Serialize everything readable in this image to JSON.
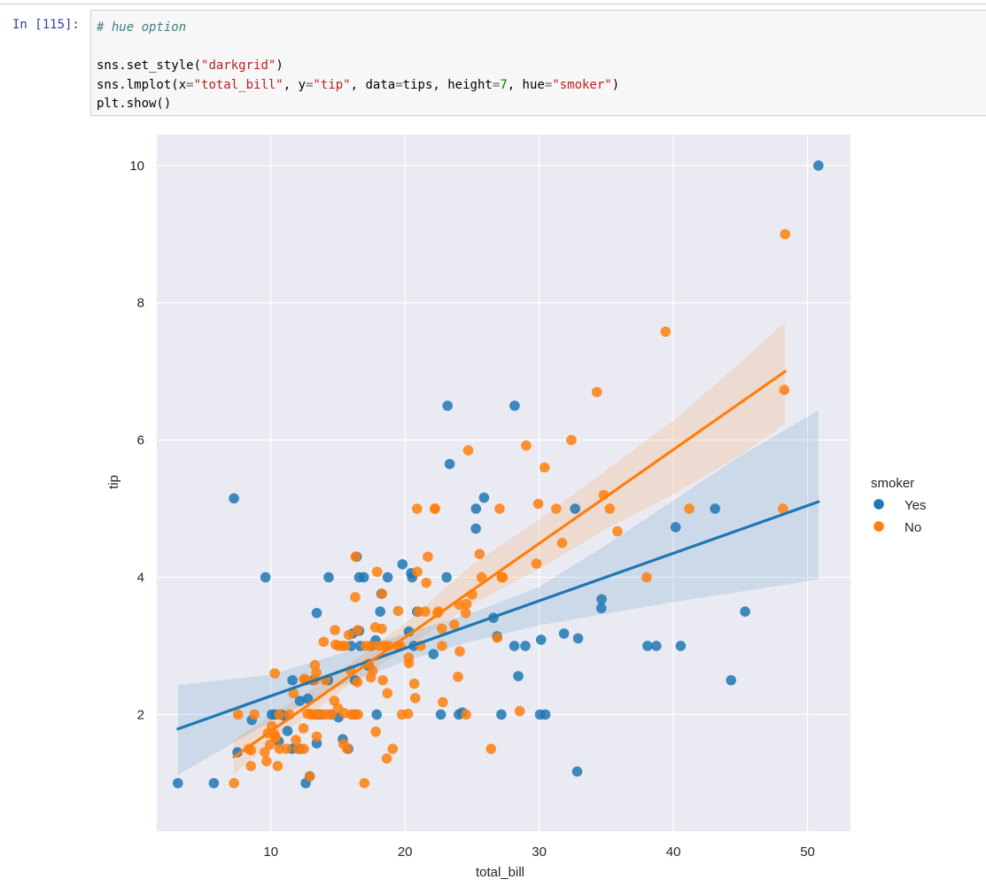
{
  "cell": {
    "prompt": "In [115]:",
    "code": {
      "comment": "# hue option",
      "line2": {
        "prefix": "sns.set_style(",
        "arg": "\"darkgrid\"",
        "suffix": ")"
      },
      "line3": {
        "p1": "sns.lmplot(x",
        "eq1": "=",
        "v1": "\"total_bill\"",
        "p2": ", y",
        "eq2": "=",
        "v2": "\"tip\"",
        "p3": ", data",
        "eq3": "=",
        "p3b": "tips, height",
        "eq4": "=",
        "v4": "7",
        "p5": ", hue",
        "eq5": "=",
        "v5": "\"smoker\"",
        "close": ")"
      },
      "line4": "plt.show()"
    }
  },
  "colors": {
    "yes": "#1f77b4",
    "no": "#ff7f0e",
    "panel": "#eaeaf2",
    "grid": "#ffffff"
  },
  "chart_data": {
    "type": "scatter",
    "xlabel": "total_bill",
    "ylabel": "tip",
    "xticks": [
      10,
      20,
      30,
      40,
      50
    ],
    "yticks": [
      2,
      4,
      6,
      8,
      10
    ],
    "xlim": [
      1.5,
      53.2
    ],
    "ylim": [
      0.3,
      10.45
    ],
    "grid": true,
    "legend": {
      "title": "smoker",
      "placement": "center-right",
      "entries": [
        "Yes",
        "No"
      ]
    },
    "series": [
      {
        "name": "Yes",
        "color": "#1f77b4",
        "points": [
          [
            3.07,
            1.0
          ],
          [
            5.75,
            1.0
          ],
          [
            7.25,
            5.15
          ],
          [
            7.51,
            1.45
          ],
          [
            8.58,
            1.92
          ],
          [
            9.6,
            4.0
          ],
          [
            10.07,
            2.0
          ],
          [
            10.34,
            2.0
          ],
          [
            10.59,
            1.61
          ],
          [
            10.77,
            2.0
          ],
          [
            11.02,
            1.98
          ],
          [
            11.24,
            1.76
          ],
          [
            11.59,
            1.5
          ],
          [
            11.61,
            2.5
          ],
          [
            12.16,
            2.2
          ],
          [
            12.17,
            1.5
          ],
          [
            12.6,
            1.0
          ],
          [
            12.76,
            2.23
          ],
          [
            12.9,
            1.1
          ],
          [
            13.16,
            2.5
          ],
          [
            13.42,
            3.48
          ],
          [
            13.42,
            1.58
          ],
          [
            13.51,
            2.0
          ],
          [
            13.81,
            2.0
          ],
          [
            14.26,
            2.5
          ],
          [
            14.31,
            4.0
          ],
          [
            14.48,
            2.0
          ],
          [
            15.04,
            1.96
          ],
          [
            15.36,
            1.64
          ],
          [
            15.77,
            1.5
          ],
          [
            15.98,
            3.0
          ],
          [
            16.09,
            3.18
          ],
          [
            16.27,
            2.5
          ],
          [
            16.4,
            4.3
          ],
          [
            16.58,
            4.0
          ],
          [
            16.58,
            3.22
          ],
          [
            16.66,
            3.0
          ],
          [
            16.93,
            4.0
          ],
          [
            17.29,
            2.71
          ],
          [
            17.47,
            3.0
          ],
          [
            17.81,
            3.08
          ],
          [
            17.89,
            2.0
          ],
          [
            18.15,
            3.5
          ],
          [
            18.24,
            3.76
          ],
          [
            18.71,
            4.0
          ],
          [
            19.81,
            4.19
          ],
          [
            20.29,
            3.21
          ],
          [
            20.45,
            4.06
          ],
          [
            20.53,
            4.0
          ],
          [
            20.65,
            3.0
          ],
          [
            20.9,
            3.5
          ],
          [
            22.12,
            2.88
          ],
          [
            22.67,
            2.0
          ],
          [
            23.1,
            4.0
          ],
          [
            23.17,
            6.5
          ],
          [
            23.33,
            5.65
          ],
          [
            24.01,
            2.0
          ],
          [
            24.27,
            2.03
          ],
          [
            25.28,
            4.71
          ],
          [
            25.29,
            5.0
          ],
          [
            25.89,
            5.16
          ],
          [
            26.59,
            3.41
          ],
          [
            26.86,
            3.14
          ],
          [
            27.18,
            2.0
          ],
          [
            28.17,
            6.5
          ],
          [
            28.15,
            3.0
          ],
          [
            28.44,
            2.56
          ],
          [
            28.97,
            3.0
          ],
          [
            30.06,
            2.0
          ],
          [
            30.14,
            3.09
          ],
          [
            30.46,
            2.0
          ],
          [
            31.85,
            3.18
          ],
          [
            32.68,
            5.0
          ],
          [
            32.83,
            1.17
          ],
          [
            32.9,
            3.11
          ],
          [
            34.63,
            3.55
          ],
          [
            34.65,
            3.68
          ],
          [
            38.07,
            3.0
          ],
          [
            38.73,
            3.0
          ],
          [
            40.17,
            4.73
          ],
          [
            40.55,
            3.0
          ],
          [
            43.11,
            5.0
          ],
          [
            44.3,
            2.5
          ],
          [
            45.35,
            3.5
          ],
          [
            50.81,
            10.0
          ]
        ]
      },
      {
        "name": "No",
        "color": "#ff7f0e",
        "points": [
          [
            7.25,
            1.0
          ],
          [
            7.56,
            2.0
          ],
          [
            8.35,
            1.5
          ],
          [
            8.51,
            1.25
          ],
          [
            8.52,
            1.48
          ],
          [
            8.77,
            2.0
          ],
          [
            9.55,
            1.45
          ],
          [
            9.68,
            1.32
          ],
          [
            9.78,
            1.73
          ],
          [
            9.94,
            1.56
          ],
          [
            10.07,
            1.83
          ],
          [
            10.27,
            1.71
          ],
          [
            10.29,
            2.6
          ],
          [
            10.33,
            1.67
          ],
          [
            10.34,
            1.66
          ],
          [
            10.51,
            1.25
          ],
          [
            10.63,
            2.0
          ],
          [
            10.65,
            1.5
          ],
          [
            11.17,
            1.5
          ],
          [
            11.38,
            2.0
          ],
          [
            11.69,
            2.31
          ],
          [
            11.87,
            1.63
          ],
          [
            12.03,
            1.5
          ],
          [
            12.43,
            1.8
          ],
          [
            12.46,
            1.5
          ],
          [
            12.48,
            2.52
          ],
          [
            12.54,
            2.5
          ],
          [
            12.66,
            2.5
          ],
          [
            12.74,
            2.01
          ],
          [
            12.9,
            1.1
          ],
          [
            13.0,
            2.0
          ],
          [
            13.03,
            2.0
          ],
          [
            13.13,
            2.0
          ],
          [
            13.27,
            2.5
          ],
          [
            13.28,
            2.72
          ],
          [
            13.37,
            2.0
          ],
          [
            13.39,
            2.61
          ],
          [
            13.42,
            1.68
          ],
          [
            13.81,
            2.0
          ],
          [
            13.94,
            3.06
          ],
          [
            14.07,
            2.5
          ],
          [
            14.15,
            2.0
          ],
          [
            14.52,
            2.0
          ],
          [
            14.73,
            2.2
          ],
          [
            14.78,
            3.23
          ],
          [
            14.83,
            3.02
          ],
          [
            15.01,
            2.09
          ],
          [
            15.06,
            3.0
          ],
          [
            15.38,
            3.0
          ],
          [
            15.42,
            1.57
          ],
          [
            15.48,
            2.02
          ],
          [
            15.53,
            3.0
          ],
          [
            15.69,
            1.5
          ],
          [
            15.81,
            3.16
          ],
          [
            15.95,
            2.64
          ],
          [
            16.0,
            2.0
          ],
          [
            16.21,
            2.0
          ],
          [
            16.29,
            3.71
          ],
          [
            16.31,
            2.0
          ],
          [
            16.32,
            4.3
          ],
          [
            16.45,
            2.47
          ],
          [
            16.47,
            3.23
          ],
          [
            16.49,
            2.0
          ],
          [
            16.97,
            1.0
          ],
          [
            17.07,
            3.0
          ],
          [
            17.26,
            2.74
          ],
          [
            17.46,
            2.54
          ],
          [
            17.51,
            3.0
          ],
          [
            17.59,
            2.64
          ],
          [
            17.78,
            3.27
          ],
          [
            17.82,
            1.75
          ],
          [
            17.92,
            4.08
          ],
          [
            18.04,
            3.0
          ],
          [
            18.26,
            3.25
          ],
          [
            18.29,
            3.76
          ],
          [
            18.35,
            2.5
          ],
          [
            18.43,
            3.0
          ],
          [
            18.64,
            1.36
          ],
          [
            18.69,
            2.31
          ],
          [
            18.78,
            3.0
          ],
          [
            19.08,
            1.5
          ],
          [
            19.44,
            3.0
          ],
          [
            19.49,
            3.51
          ],
          [
            19.65,
            3.0
          ],
          [
            19.77,
            2.0
          ],
          [
            20.23,
            2.01
          ],
          [
            20.27,
            2.83
          ],
          [
            20.29,
            2.75
          ],
          [
            20.69,
            2.45
          ],
          [
            20.76,
            2.24
          ],
          [
            20.92,
            4.08
          ],
          [
            21.01,
            3.5
          ],
          [
            21.16,
            3.0
          ],
          [
            21.5,
            3.5
          ],
          [
            21.58,
            3.92
          ],
          [
            21.7,
            4.3
          ],
          [
            22.23,
            5.0
          ],
          [
            22.42,
            3.48
          ],
          [
            22.49,
            3.5
          ],
          [
            22.75,
            3.25
          ],
          [
            22.76,
            3.0
          ],
          [
            22.82,
            2.18
          ],
          [
            23.68,
            3.31
          ],
          [
            23.95,
            2.55
          ],
          [
            24.06,
            3.6
          ],
          [
            24.08,
            2.92
          ],
          [
            24.52,
            3.48
          ],
          [
            24.55,
            2.0
          ],
          [
            24.59,
            3.61
          ],
          [
            25.0,
            3.75
          ],
          [
            25.56,
            4.34
          ],
          [
            25.71,
            4.0
          ],
          [
            26.41,
            1.5
          ],
          [
            26.88,
            3.12
          ],
          [
            27.2,
            4.0
          ],
          [
            27.28,
            4.0
          ],
          [
            28.55,
            2.05
          ],
          [
            29.03,
            5.92
          ],
          [
            29.8,
            4.2
          ],
          [
            29.93,
            5.07
          ],
          [
            30.4,
            5.6
          ],
          [
            31.27,
            5.0
          ],
          [
            31.71,
            4.5
          ],
          [
            32.4,
            6.0
          ],
          [
            34.3,
            6.7
          ],
          [
            34.81,
            5.2
          ],
          [
            35.26,
            5.0
          ],
          [
            35.83,
            4.67
          ],
          [
            38.01,
            4.0
          ],
          [
            39.42,
            7.58
          ],
          [
            41.19,
            5.0
          ],
          [
            48.17,
            5.0
          ],
          [
            48.27,
            6.73
          ],
          [
            48.33,
            9.0
          ],
          [
            20.9,
            5.0
          ],
          [
            22.23,
            5.0
          ],
          [
            24.71,
            5.85
          ],
          [
            27.05,
            5.0
          ]
        ]
      }
    ],
    "regression": [
      {
        "name": "Yes",
        "x": [
          3.07,
          50.81
        ],
        "y": [
          1.79,
          5.1
        ],
        "ci_x": [
          3.07,
          10,
          15,
          20,
          25,
          30,
          35,
          40,
          45,
          50.81
        ],
        "ci_lo": [
          1.12,
          1.9,
          2.4,
          2.78,
          3.07,
          3.3,
          3.47,
          3.64,
          3.79,
          3.97
        ],
        "ci_hi": [
          2.43,
          2.58,
          2.88,
          3.18,
          3.48,
          3.86,
          4.47,
          5.12,
          5.77,
          6.43
        ]
      },
      {
        "name": "No",
        "x": [
          7.25,
          48.33
        ],
        "y": [
          1.38,
          7.0
        ],
        "ci_x": [
          7.25,
          10,
          15,
          20,
          25,
          30,
          35,
          40,
          45,
          48.33
        ],
        "ci_lo": [
          1.13,
          1.58,
          2.31,
          2.96,
          3.61,
          4.12,
          4.71,
          5.21,
          5.78,
          6.24
        ],
        "ci_hi": [
          1.63,
          1.98,
          2.62,
          3.33,
          4.18,
          4.84,
          5.56,
          6.28,
          7.13,
          7.72
        ]
      }
    ]
  }
}
